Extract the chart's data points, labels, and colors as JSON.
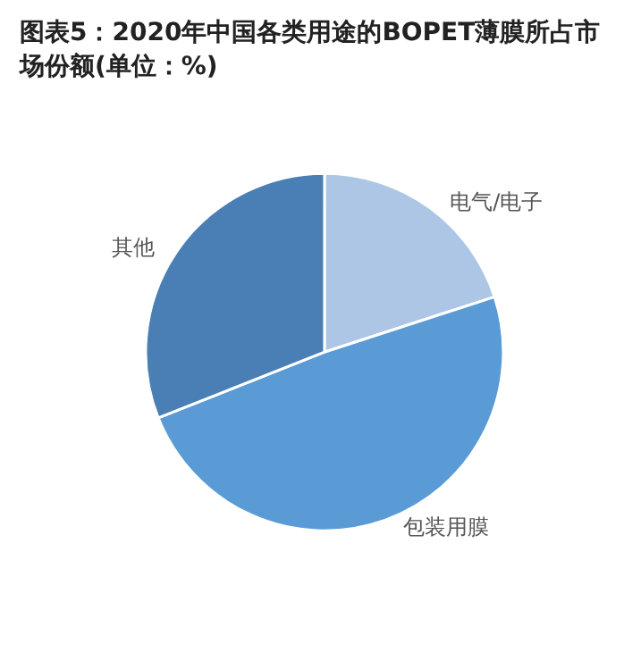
{
  "chart_data": {
    "type": "pie",
    "title": "图表5：2020年中国各类用途的BOPET薄膜所占市场份额(单位：%)",
    "categories": [
      "电气/电子",
      "包装用膜",
      "其他"
    ],
    "values": [
      20,
      49,
      31
    ],
    "colors": [
      "#adc6e6",
      "#5b9bd5",
      "#4a7fb5"
    ]
  }
}
